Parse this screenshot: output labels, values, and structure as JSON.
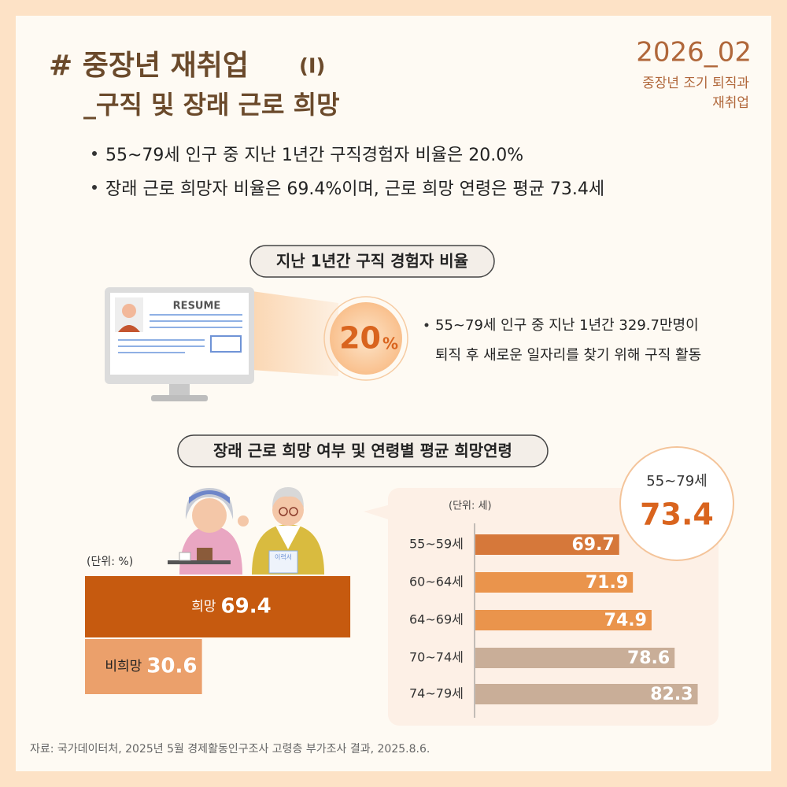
{
  "header": {
    "title": "# 중장년 재취업",
    "title_suffix": "(Ⅰ)",
    "subtitle": "_구직 및 장래 근로 희망",
    "date": "2026_02",
    "tag_lines": [
      "중장년 조기 퇴직과",
      "재취업"
    ]
  },
  "bullets": [
    "55~79세 인구 중 지난 1년간 구직경험자 비율은 20.0%",
    "장래 근로 희망자 비율은 69.4%이며, 근로 희망 연령은 평균 73.4세"
  ],
  "section1": {
    "title": "지난 1년간 구직 경험자 비율",
    "resume_label": "RESUME",
    "big_number": "20",
    "big_unit": "%",
    "note_lines": [
      "55~79세 인구 중 지난 1년간 329.7만명이",
      "퇴직 후 새로운 일자리를 찾기 위해 구직 활동"
    ]
  },
  "section2": {
    "title": "장래 근로 희망 여부 및 연령별 평균 희망연령",
    "badge_text": "이력서"
  },
  "chart_data": [
    {
      "type": "bar",
      "unit_label": "(단위: %)",
      "categories": [
        "희망",
        "비희망"
      ],
      "values": [
        69.4,
        30.6
      ],
      "colors": [
        "#c65a0f",
        "#eba06b"
      ],
      "xlim": [
        0,
        70
      ]
    },
    {
      "type": "bar",
      "unit_label": "(단위: 세)",
      "categories": [
        "55~59세",
        "60~64세",
        "64~69세",
        "70~74세",
        "74~79세"
      ],
      "values": [
        69.7,
        71.9,
        74.9,
        78.6,
        82.3
      ],
      "colors": [
        "#d6783a",
        "#ea944c",
        "#ea944c",
        "#c9ae98",
        "#c9ae98"
      ],
      "xlim": [
        46.5,
        84
      ],
      "average_label": "55~79세",
      "average_value": 73.4
    }
  ],
  "source": "자료: 국가데이터처, 2025년 5월 경제활동인구조사 고령층 부가조사 결과, 2025.8.6."
}
